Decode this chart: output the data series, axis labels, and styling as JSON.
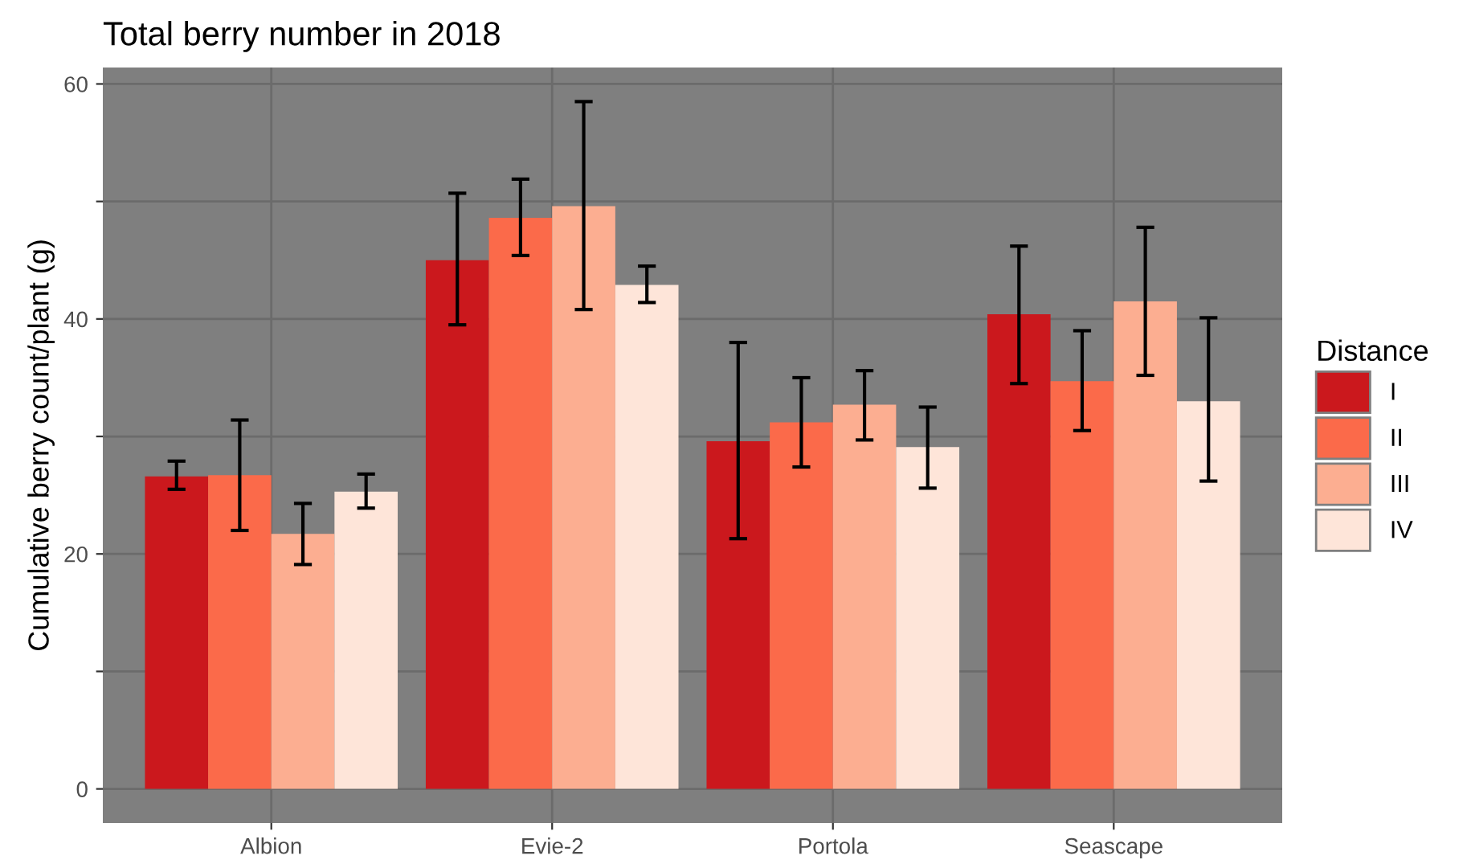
{
  "chart_data": {
    "type": "bar",
    "title": "Total berry number in 2018",
    "ylabel": "Cumulative berry count/plant (g)",
    "legend_title": "Distance",
    "categories": [
      "Albion",
      "Evie-2",
      "Portola",
      "Seascape"
    ],
    "series": [
      {
        "name": "I",
        "color": "#cb181d",
        "values": [
          26.6,
          45.0,
          29.6,
          40.4
        ],
        "errors": [
          [
            25.5,
            27.9
          ],
          [
            39.5,
            50.7
          ],
          [
            21.3,
            38.0
          ],
          [
            34.5,
            46.2
          ]
        ]
      },
      {
        "name": "II",
        "color": "#fb6a4a",
        "values": [
          26.7,
          48.6,
          31.2,
          34.7
        ],
        "errors": [
          [
            22.0,
            31.4
          ],
          [
            45.4,
            51.9
          ],
          [
            27.4,
            35.0
          ],
          [
            30.5,
            39.0
          ]
        ]
      },
      {
        "name": "III",
        "color": "#fcae91",
        "values": [
          21.7,
          49.6,
          32.7,
          41.5
        ],
        "errors": [
          [
            19.1,
            24.3
          ],
          [
            40.8,
            58.5
          ],
          [
            29.7,
            35.6
          ],
          [
            35.2,
            47.8
          ]
        ]
      },
      {
        "name": "IV",
        "color": "#fee5d9",
        "values": [
          25.3,
          42.9,
          29.1,
          33.0
        ],
        "errors": [
          [
            23.9,
            26.8
          ],
          [
            41.4,
            44.5
          ],
          [
            25.6,
            32.5
          ],
          [
            26.2,
            40.1
          ]
        ]
      }
    ],
    "ylim": [
      -2.9,
      61.4
    ],
    "yticks": [
      0,
      {
        "value": 10,
        "label": null
      },
      20,
      {
        "value": 30,
        "label": null
      },
      40,
      {
        "value": 50,
        "label": null
      },
      60
    ],
    "grid": true,
    "legend": "right"
  }
}
